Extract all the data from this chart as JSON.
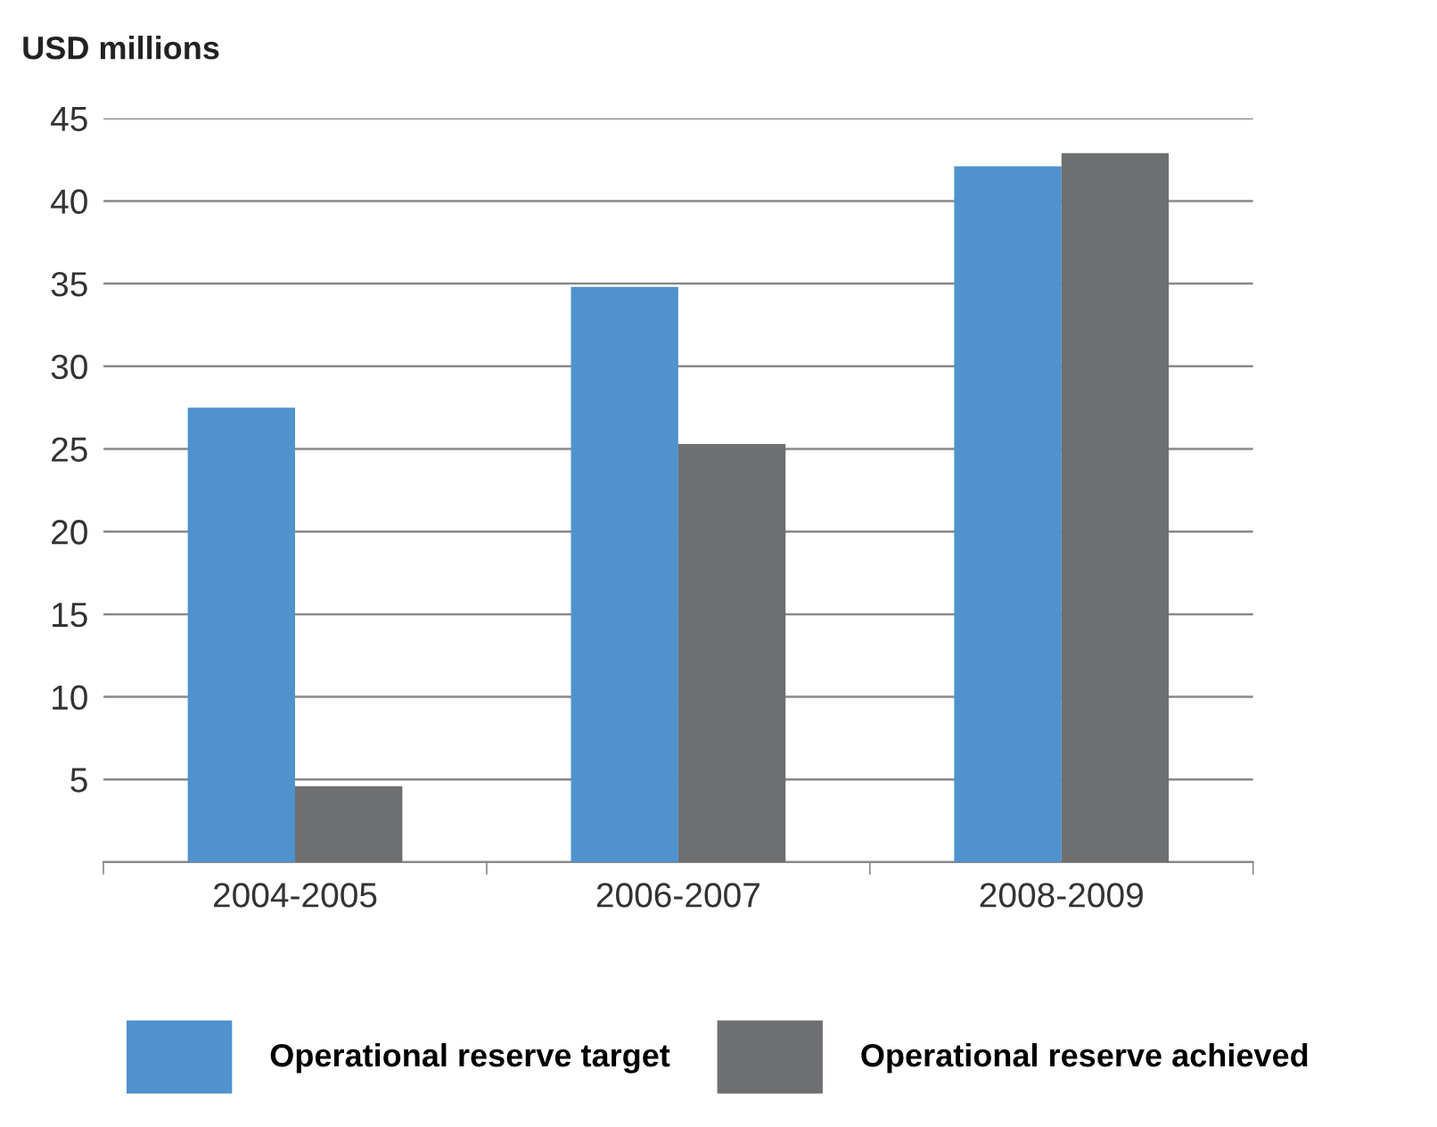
{
  "chart_data": {
    "type": "bar",
    "ylabel": "USD millions",
    "categories": [
      "2004-2005",
      "2006-2007",
      "2008-2009"
    ],
    "series": [
      {
        "name": "Operational reserve target",
        "color": "#4f92cd",
        "values": [
          27.5,
          34.8,
          42.1
        ]
      },
      {
        "name": "Operational reserve achieved",
        "color": "#6e6f71",
        "values": [
          4.6,
          25.3,
          42.9
        ]
      }
    ],
    "ylim": [
      0,
      45
    ],
    "yticks": [
      {
        "value": 0,
        "label": null
      },
      5,
      10,
      15,
      20,
      25,
      30,
      35,
      40,
      45
    ],
    "grid": "y",
    "legend": "bottom"
  }
}
